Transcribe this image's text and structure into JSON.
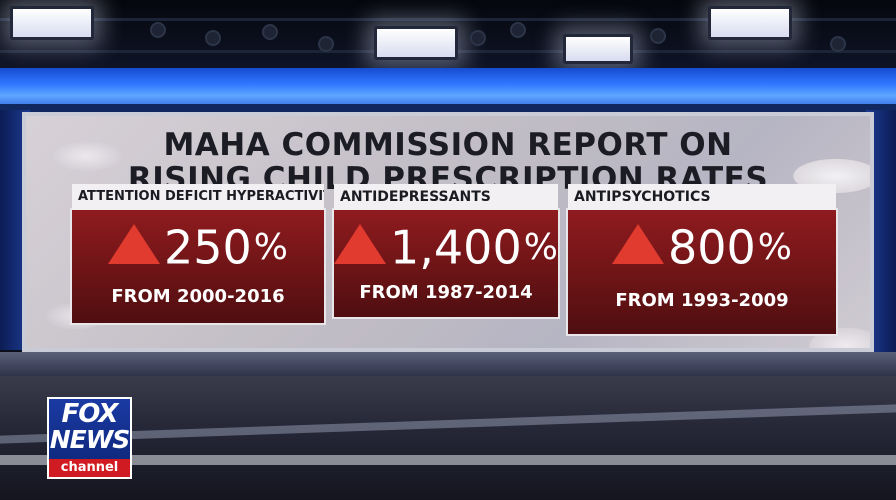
{
  "graphic": {
    "title_line1": "MAHA COMMISSION REPORT ON",
    "title_line2": "RISING CHILD PRESCRIPTION RATES",
    "panels": [
      {
        "header": "ATTENTION DEFICIT HYPERACTIVITY DISORDER",
        "value": "250",
        "unit": "%",
        "range": "FROM 2000-2016"
      },
      {
        "header": "ANTIDEPRESSANTS",
        "value": "1,400",
        "unit": "%",
        "range": "FROM 1987-2014"
      },
      {
        "header": "ANTIPSYCHOTICS",
        "value": "800",
        "unit": "%",
        "range": "FROM 1993-2009"
      }
    ]
  },
  "logo": {
    "line1": "FOX",
    "line2": "NEWS",
    "line3": "channel"
  },
  "colors": {
    "panel_red": "#8f1b1f",
    "arrow_red": "#e13a2e",
    "led_blue": "#2f78ff",
    "logo_blue": "#1b3aa3",
    "logo_red": "#d11b22"
  }
}
